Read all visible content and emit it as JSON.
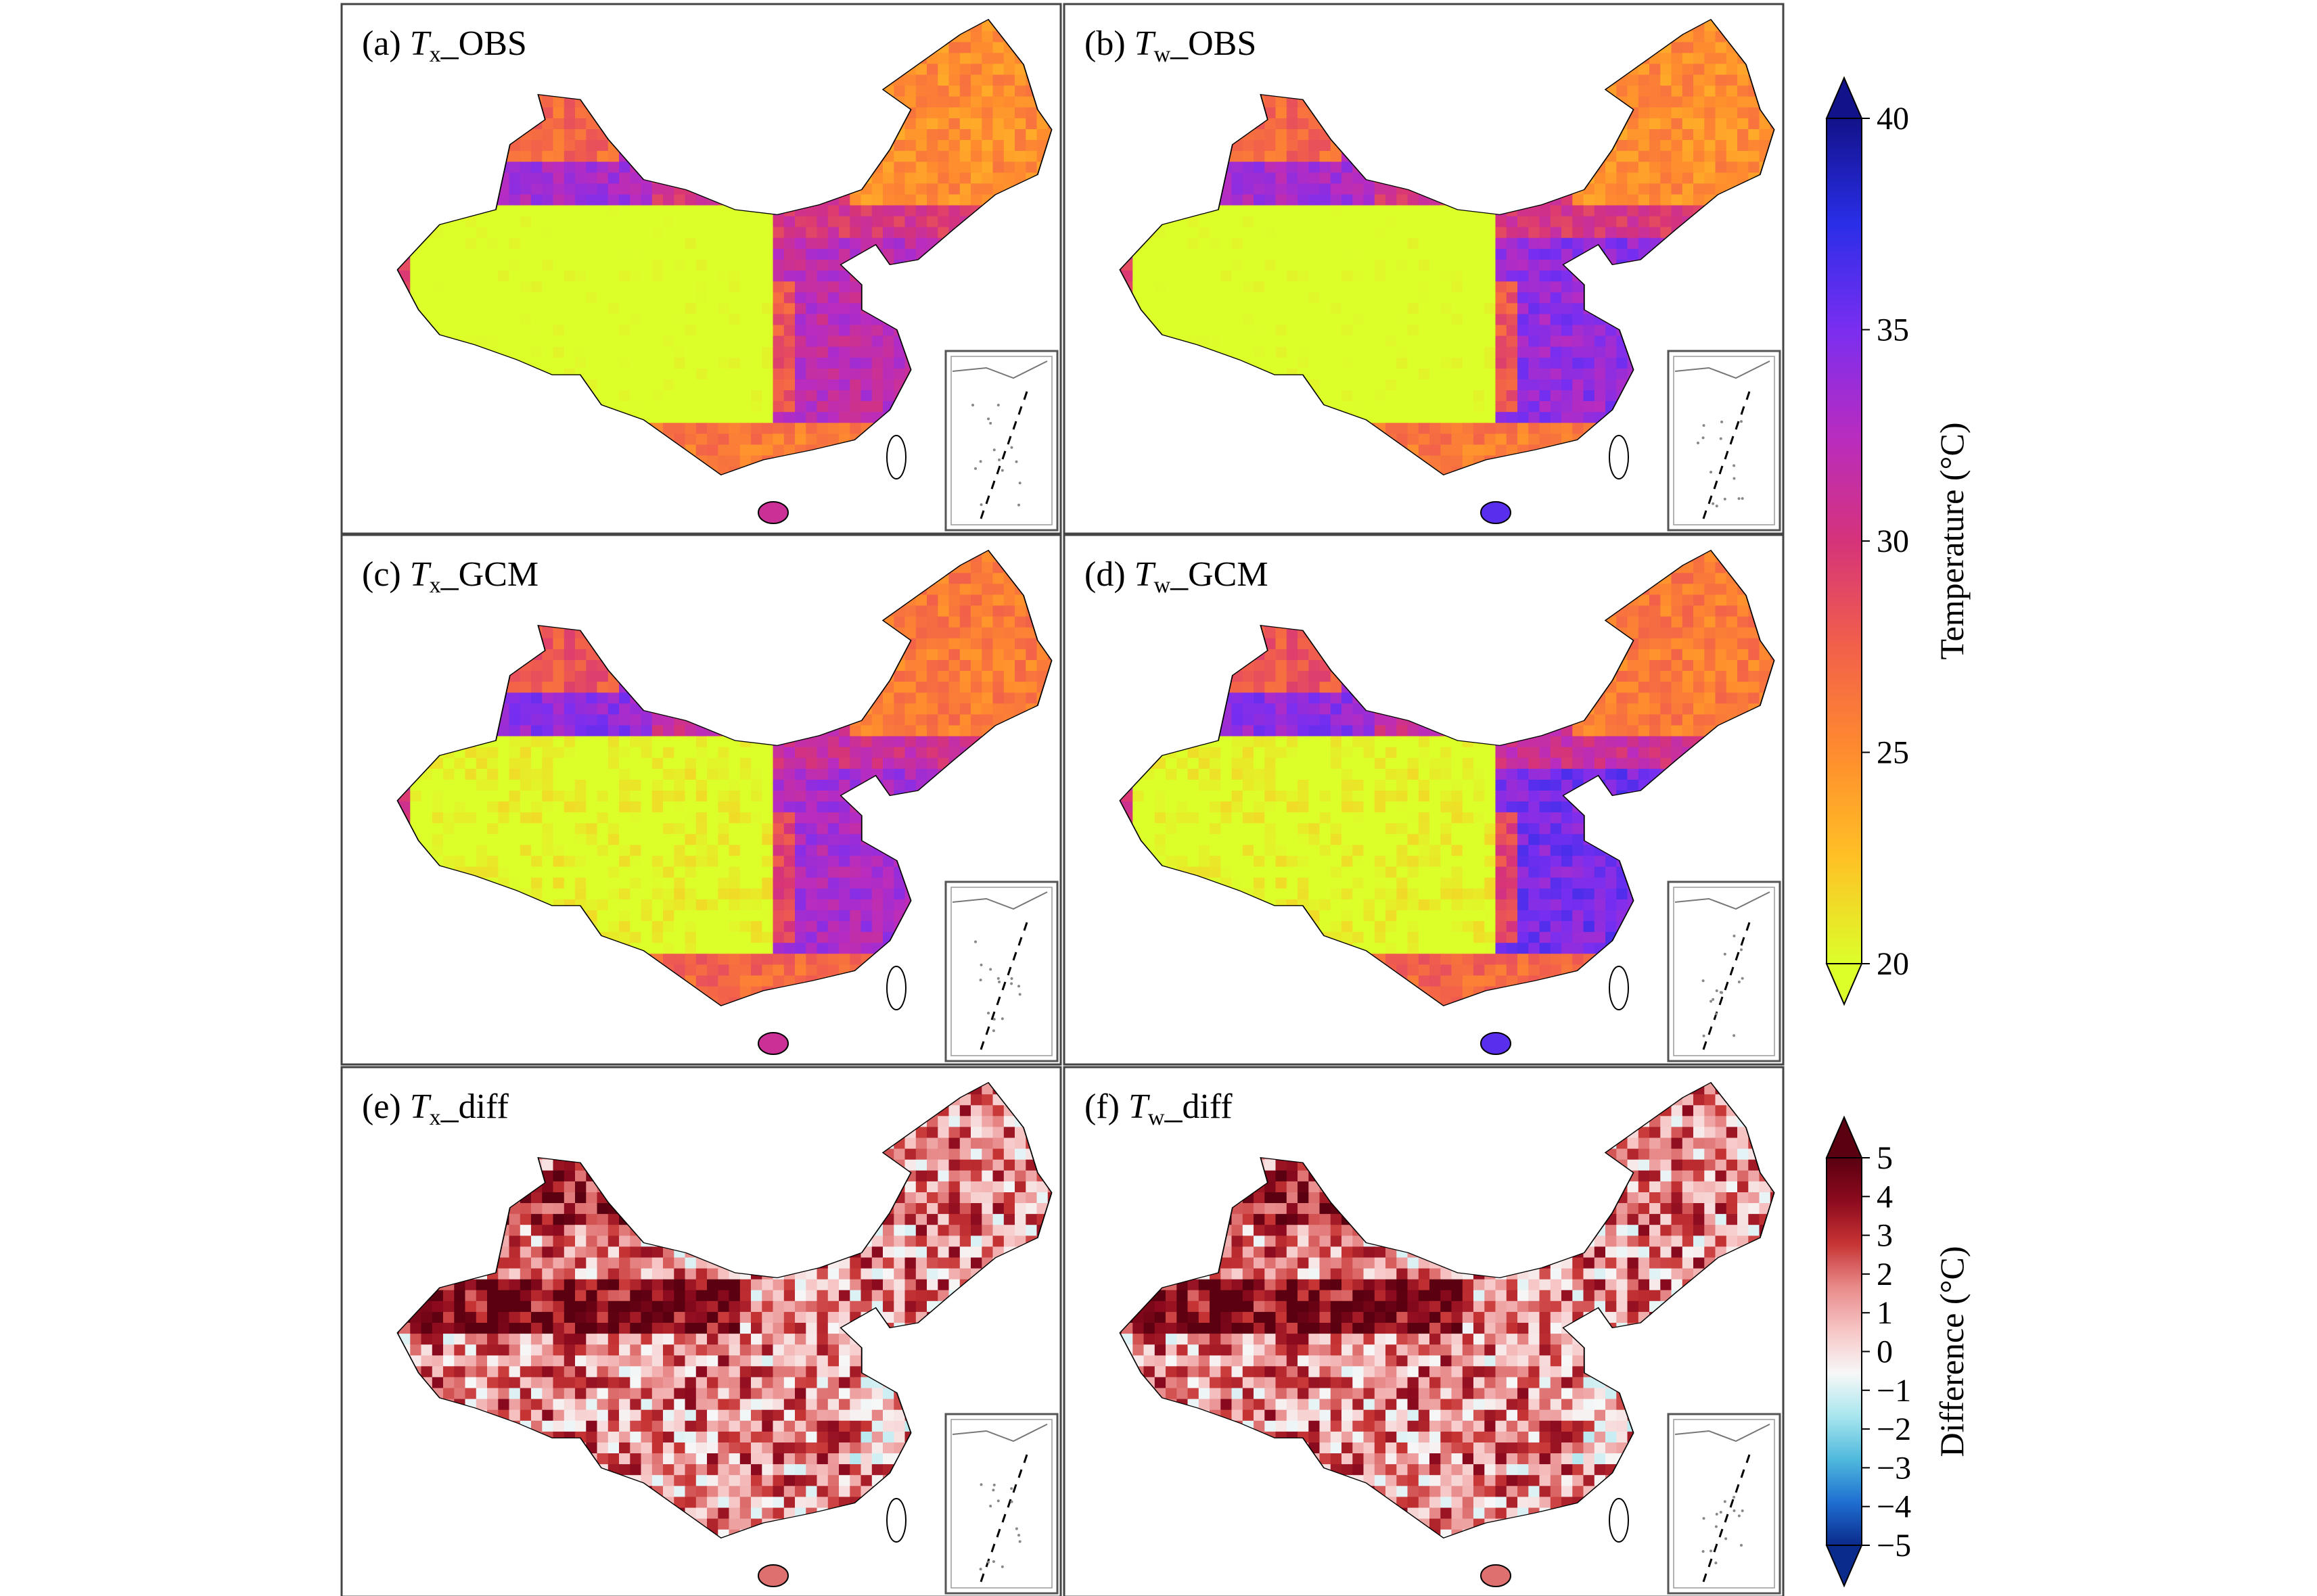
{
  "chart_data": {
    "type": "heatmap",
    "panels": [
      {
        "id": "a",
        "prefix": "(a) ",
        "symbol": "T",
        "subscript": "x",
        "suffix": "_OBS",
        "scale": "temperature",
        "variant": "tx_obs"
      },
      {
        "id": "b",
        "prefix": "(b) ",
        "symbol": "T",
        "subscript": "w",
        "suffix": "_OBS",
        "scale": "temperature",
        "variant": "tw_obs"
      },
      {
        "id": "c",
        "prefix": "(c) ",
        "symbol": "T",
        "subscript": "x",
        "suffix": "_GCM",
        "scale": "temperature",
        "variant": "tx_gcm"
      },
      {
        "id": "d",
        "prefix": "(d) ",
        "symbol": "T",
        "subscript": "w",
        "suffix": "_GCM",
        "scale": "temperature",
        "variant": "tw_gcm"
      },
      {
        "id": "e",
        "prefix": "(e) ",
        "symbol": "T",
        "subscript": "x",
        "suffix": "_diff",
        "scale": "difference",
        "variant": "tx_diff"
      },
      {
        "id": "f",
        "prefix": "(f) ",
        "symbol": "T",
        "subscript": "w",
        "suffix": "_diff",
        "scale": "difference",
        "variant": "tw_diff"
      }
    ],
    "colorbars": [
      {
        "name": "temperature",
        "title": "Temperature (°C)",
        "range": [
          20,
          40
        ],
        "ticks": [
          {
            "value": 20,
            "label": "20"
          },
          {
            "value": 25,
            "label": "25"
          },
          {
            "value": 30,
            "label": "30"
          },
          {
            "value": 35,
            "label": "35"
          },
          {
            "value": 40,
            "label": "40"
          }
        ],
        "colors": [
          "#dcff2a",
          "#ffc125",
          "#ff8c2e",
          "#f2604a",
          "#d6337a",
          "#b82cc0",
          "#7a2ef0",
          "#2a2ee8",
          "#12128a"
        ],
        "extend": "both"
      },
      {
        "name": "difference",
        "title": "Difference (°C)",
        "range": [
          -5,
          5
        ],
        "ticks": [
          {
            "value": 5,
            "label": "5"
          },
          {
            "value": 4,
            "label": "4"
          },
          {
            "value": 3,
            "label": "3"
          },
          {
            "value": 2,
            "label": "2"
          },
          {
            "value": 1,
            "label": "1"
          },
          {
            "value": 0,
            "label": "0"
          },
          {
            "value": -1,
            "label": "−1"
          },
          {
            "value": -2,
            "label": "−2"
          },
          {
            "value": -3,
            "label": "−3"
          },
          {
            "value": -4,
            "label": "−4"
          },
          {
            "value": -5,
            "label": "−5"
          }
        ],
        "colors": [
          "#0a2a8c",
          "#1f6fd1",
          "#4fb9dd",
          "#a8e6ee",
          "#f7f7f7",
          "#f7c5c5",
          "#e88a8a",
          "#c73434",
          "#8c0a1e",
          "#5a0010"
        ],
        "extend": "both"
      }
    ]
  }
}
